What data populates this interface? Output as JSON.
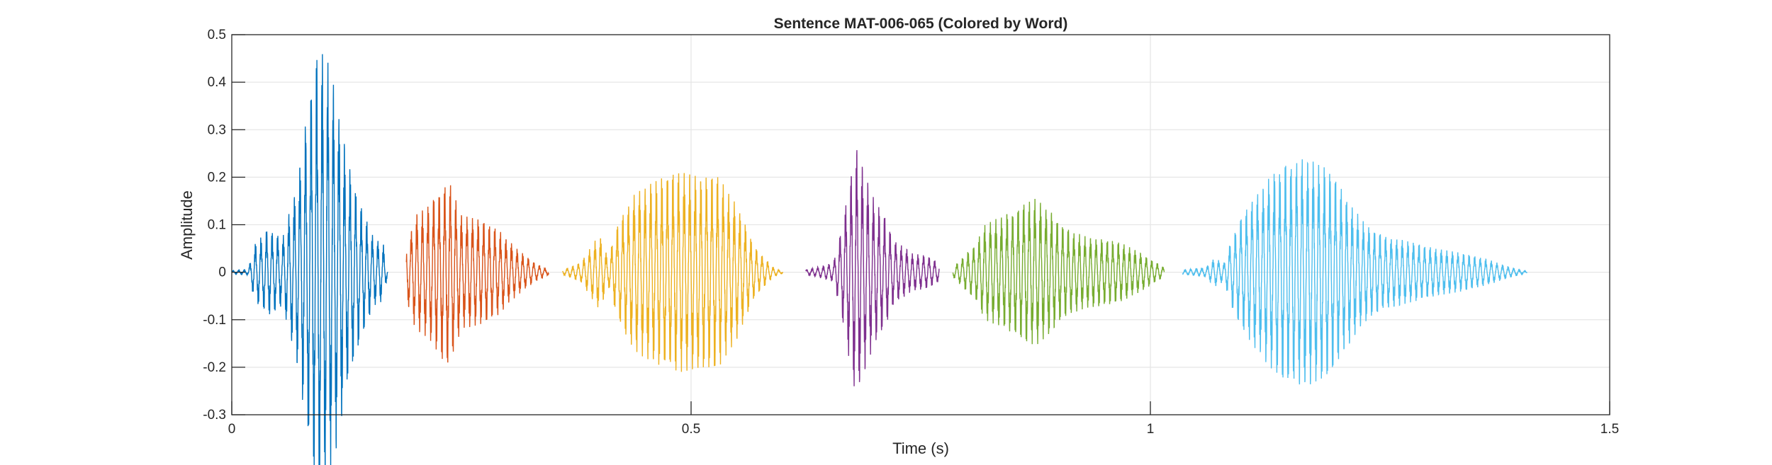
{
  "chart_data": {
    "type": "line",
    "title": "Sentence MAT-006-065 (Colored by Word)",
    "xlabel": "Time (s)",
    "ylabel": "Amplitude",
    "xlim": [
      0,
      1.5
    ],
    "ylim": [
      -0.3,
      0.5
    ],
    "xticks": [
      0,
      0.5,
      1,
      1.5
    ],
    "xtick_labels": [
      "0",
      "0.5",
      "1",
      "1.5"
    ],
    "yticks": [
      -0.3,
      -0.2,
      -0.1,
      0,
      0.1,
      0.2,
      0.3,
      0.4,
      0.5
    ],
    "ytick_labels": [
      "-0.3",
      "-0.2",
      "-0.1",
      "0",
      "0.1",
      "0.2",
      "0.3",
      "0.4",
      "0.5"
    ],
    "grid": true,
    "legend": "none",
    "series": [
      {
        "color": "#0072BD",
        "t_start": 0.0,
        "t_end": 0.17,
        "envelope": [
          [
            0.0,
            0.003
          ],
          [
            0.018,
            0.006
          ],
          [
            0.025,
            0.06
          ],
          [
            0.04,
            0.09
          ],
          [
            0.055,
            0.07
          ],
          [
            0.07,
            0.18
          ],
          [
            0.085,
            0.37
          ],
          [
            0.095,
            0.47
          ],
          [
            0.105,
            0.44
          ],
          [
            0.115,
            0.36
          ],
          [
            0.125,
            0.24
          ],
          [
            0.14,
            0.14
          ],
          [
            0.155,
            0.07
          ],
          [
            0.165,
            0.06
          ],
          [
            0.17,
            0.0
          ]
        ]
      },
      {
        "color": "#D95319",
        "t_start": 0.19,
        "t_end": 0.345,
        "envelope": [
          [
            0.19,
            0.06
          ],
          [
            0.2,
            0.12
          ],
          [
            0.215,
            0.14
          ],
          [
            0.225,
            0.17
          ],
          [
            0.235,
            0.2
          ],
          [
            0.25,
            0.12
          ],
          [
            0.27,
            0.11
          ],
          [
            0.29,
            0.09
          ],
          [
            0.31,
            0.05
          ],
          [
            0.33,
            0.02
          ],
          [
            0.345,
            0.005
          ]
        ]
      },
      {
        "color": "#EDB120",
        "t_start": 0.36,
        "t_end": 0.6,
        "envelope": [
          [
            0.36,
            0.005
          ],
          [
            0.38,
            0.02
          ],
          [
            0.39,
            0.05
          ],
          [
            0.4,
            0.08
          ],
          [
            0.41,
            0.03
          ],
          [
            0.42,
            0.1
          ],
          [
            0.44,
            0.17
          ],
          [
            0.47,
            0.2
          ],
          [
            0.49,
            0.21
          ],
          [
            0.51,
            0.2
          ],
          [
            0.53,
            0.2
          ],
          [
            0.55,
            0.14
          ],
          [
            0.57,
            0.05
          ],
          [
            0.59,
            0.01
          ],
          [
            0.6,
            0.002
          ]
        ]
      },
      {
        "color": "#7E2F8E",
        "t_start": 0.625,
        "t_end": 0.77,
        "envelope": [
          [
            0.625,
            0.005
          ],
          [
            0.64,
            0.012
          ],
          [
            0.655,
            0.02
          ],
          [
            0.665,
            0.1
          ],
          [
            0.675,
            0.22
          ],
          [
            0.68,
            0.26
          ],
          [
            0.69,
            0.2
          ],
          [
            0.7,
            0.15
          ],
          [
            0.71,
            0.12
          ],
          [
            0.72,
            0.07
          ],
          [
            0.74,
            0.04
          ],
          [
            0.755,
            0.035
          ],
          [
            0.77,
            0.02
          ]
        ]
      },
      {
        "color": "#77AC30",
        "t_start": 0.785,
        "t_end": 1.015,
        "envelope": [
          [
            0.785,
            0.01
          ],
          [
            0.8,
            0.04
          ],
          [
            0.81,
            0.06
          ],
          [
            0.82,
            0.1
          ],
          [
            0.84,
            0.12
          ],
          [
            0.86,
            0.14
          ],
          [
            0.875,
            0.155
          ],
          [
            0.89,
            0.13
          ],
          [
            0.91,
            0.09
          ],
          [
            0.93,
            0.075
          ],
          [
            0.95,
            0.07
          ],
          [
            0.97,
            0.06
          ],
          [
            0.99,
            0.04
          ],
          [
            1.015,
            0.01
          ]
        ]
      },
      {
        "color": "#4DBEEE",
        "t_start": 1.035,
        "t_end": 1.41,
        "envelope": [
          [
            1.035,
            0.005
          ],
          [
            1.06,
            0.01
          ],
          [
            1.07,
            0.03
          ],
          [
            1.08,
            0.02
          ],
          [
            1.09,
            0.08
          ],
          [
            1.11,
            0.15
          ],
          [
            1.13,
            0.2
          ],
          [
            1.15,
            0.23
          ],
          [
            1.17,
            0.24
          ],
          [
            1.19,
            0.22
          ],
          [
            1.21,
            0.17
          ],
          [
            1.23,
            0.11
          ],
          [
            1.25,
            0.08
          ],
          [
            1.28,
            0.065
          ],
          [
            1.31,
            0.05
          ],
          [
            1.34,
            0.04
          ],
          [
            1.37,
            0.025
          ],
          [
            1.39,
            0.012
          ],
          [
            1.41,
            0.002
          ]
        ]
      }
    ]
  }
}
